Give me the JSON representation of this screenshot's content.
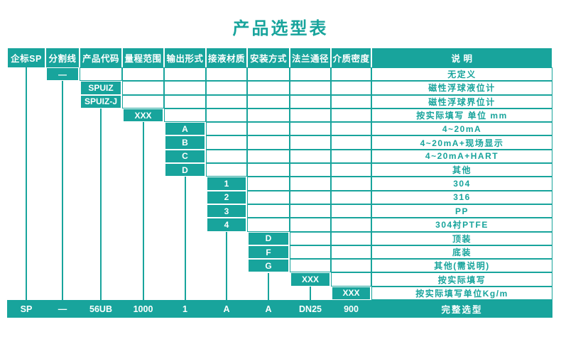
{
  "title": "产品选型表",
  "colors": {
    "accent": "#18a49c"
  },
  "header": {
    "labels": [
      "企标SP",
      "分割线",
      "产品代码",
      "量程范围",
      "输出形式",
      "接液材质",
      "安装方式",
      "法兰通径",
      "介质密度",
      "说  明"
    ]
  },
  "rows": [
    {
      "col": 2,
      "code": "—",
      "desc": "无定义"
    },
    {
      "col": 3,
      "code": "SPUIZ",
      "desc": "磁性浮球液位计"
    },
    {
      "col": 3,
      "code": "SPUIZ-J",
      "desc": "磁性浮球界位计"
    },
    {
      "col": 4,
      "code": "XXX",
      "desc": "按实际填写 单位 mm"
    },
    {
      "col": 5,
      "code": "A",
      "desc": "4~20mA"
    },
    {
      "col": 5,
      "code": "B",
      "desc": "4~20mA+现场显示"
    },
    {
      "col": 5,
      "code": "C",
      "desc": "4~20mA+HART"
    },
    {
      "col": 5,
      "code": "D",
      "desc": "其他"
    },
    {
      "col": 6,
      "code": "1",
      "desc": "304"
    },
    {
      "col": 6,
      "code": "2",
      "desc": "316"
    },
    {
      "col": 6,
      "code": "3",
      "desc": "PP"
    },
    {
      "col": 6,
      "code": "4",
      "desc": "304衬PTFE"
    },
    {
      "col": 7,
      "code": "D",
      "desc": "顶装"
    },
    {
      "col": 7,
      "code": "F",
      "desc": "底装"
    },
    {
      "col": 7,
      "code": "G",
      "desc": "其他(需说明)"
    },
    {
      "col": 8,
      "code": "XXX",
      "desc": "按实际填写"
    },
    {
      "col": 9,
      "code": "XXX",
      "desc": "按实际填写单位Kg/m"
    }
  ],
  "bottom": {
    "values": [
      "SP",
      "—",
      "56UB",
      "1000",
      "1",
      "A",
      "A",
      "DN25",
      "900"
    ],
    "label": "完整选型"
  }
}
